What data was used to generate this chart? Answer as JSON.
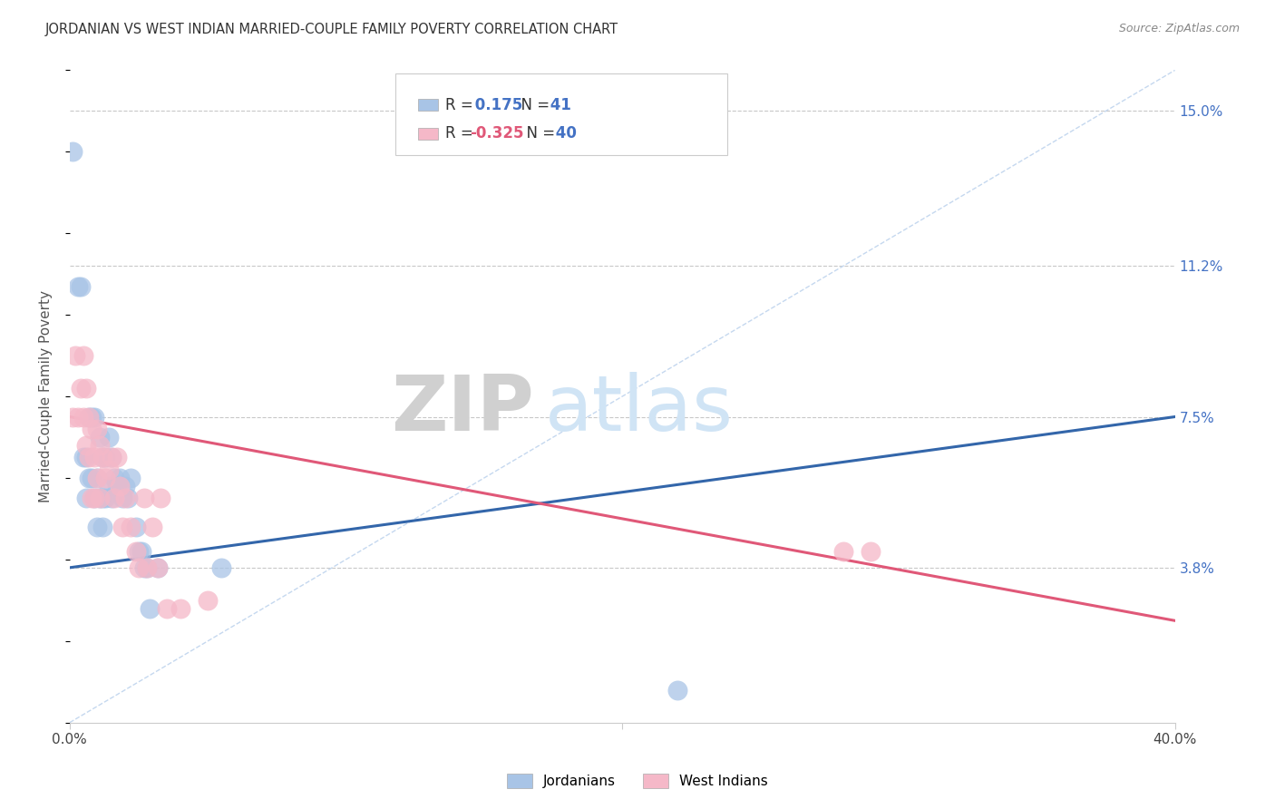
{
  "title": "JORDANIAN VS WEST INDIAN MARRIED-COUPLE FAMILY POVERTY CORRELATION CHART",
  "source": "Source: ZipAtlas.com",
  "ylabel": "Married-Couple Family Poverty",
  "ytick_vals": [
    0.038,
    0.075,
    0.112,
    0.15
  ],
  "ytick_labels": [
    "3.8%",
    "7.5%",
    "11.2%",
    "15.0%"
  ],
  "xmin": 0.0,
  "xmax": 0.4,
  "ymin": 0.0,
  "ymax": 0.16,
  "jordanian_x": [
    0.001,
    0.003,
    0.004,
    0.005,
    0.006,
    0.006,
    0.007,
    0.007,
    0.008,
    0.008,
    0.009,
    0.009,
    0.01,
    0.01,
    0.011,
    0.011,
    0.012,
    0.012,
    0.012,
    0.013,
    0.013,
    0.014,
    0.014,
    0.015,
    0.015,
    0.016,
    0.017,
    0.018,
    0.019,
    0.02,
    0.021,
    0.022,
    0.024,
    0.025,
    0.026,
    0.027,
    0.028,
    0.029,
    0.032,
    0.055,
    0.22
  ],
  "jordanian_y": [
    0.14,
    0.107,
    0.107,
    0.065,
    0.065,
    0.055,
    0.075,
    0.06,
    0.075,
    0.06,
    0.075,
    0.055,
    0.06,
    0.048,
    0.07,
    0.055,
    0.065,
    0.055,
    0.048,
    0.065,
    0.055,
    0.07,
    0.058,
    0.065,
    0.055,
    0.06,
    0.058,
    0.06,
    0.055,
    0.058,
    0.055,
    0.06,
    0.048,
    0.042,
    0.042,
    0.038,
    0.038,
    0.028,
    0.038,
    0.038,
    0.008
  ],
  "westindian_x": [
    0.001,
    0.002,
    0.003,
    0.004,
    0.005,
    0.005,
    0.006,
    0.006,
    0.007,
    0.007,
    0.008,
    0.008,
    0.009,
    0.009,
    0.01,
    0.01,
    0.011,
    0.011,
    0.012,
    0.013,
    0.014,
    0.015,
    0.016,
    0.017,
    0.018,
    0.019,
    0.02,
    0.022,
    0.024,
    0.025,
    0.027,
    0.028,
    0.03,
    0.032,
    0.033,
    0.035,
    0.04,
    0.05,
    0.28,
    0.29
  ],
  "westindian_y": [
    0.075,
    0.09,
    0.075,
    0.082,
    0.09,
    0.075,
    0.082,
    0.068,
    0.075,
    0.065,
    0.072,
    0.055,
    0.065,
    0.055,
    0.072,
    0.06,
    0.068,
    0.055,
    0.065,
    0.06,
    0.062,
    0.065,
    0.055,
    0.065,
    0.058,
    0.048,
    0.055,
    0.048,
    0.042,
    0.038,
    0.055,
    0.038,
    0.048,
    0.038,
    0.055,
    0.028,
    0.028,
    0.03,
    0.042,
    0.042
  ],
  "jordan_line_x": [
    0.0,
    0.4
  ],
  "jordan_line_y": [
    0.038,
    0.075
  ],
  "westindian_line_x": [
    0.0,
    0.4
  ],
  "westindian_line_y": [
    0.075,
    0.025
  ],
  "diagonal_line_x": [
    0.0,
    0.4
  ],
  "diagonal_line_y": [
    0.0,
    0.16
  ],
  "jordan_scatter_color": "#a8c4e6",
  "westindian_scatter_color": "#f5b8c8",
  "jordan_line_color": "#3366aa",
  "westindian_line_color": "#e05878",
  "diagonal_color": "#c5d8ef",
  "background_color": "#ffffff",
  "R_jordan": "0.175",
  "N_jordan": "41",
  "R_westindian": "-0.325",
  "N_westindian": "40"
}
